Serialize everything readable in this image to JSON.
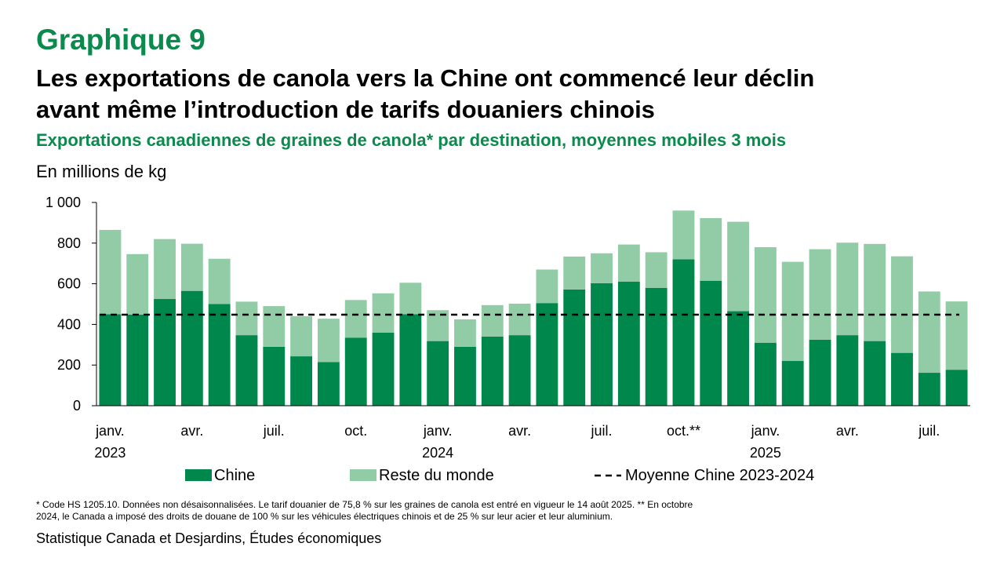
{
  "header": {
    "kicker": "Graphique 9",
    "title_line1": "Les exportations de canola vers la Chine ont commencé leur déclin",
    "title_line2": "avant même l’introduction de tarifs douaniers chinois",
    "subtitle": "Exportations canadiennes de graines de canola* par destination, moyennes mobiles 3 mois",
    "unit": "En millions de kg"
  },
  "footer": {
    "note_line1": "* Code HS 1205.10. Données non désaisonnalisées. Le tarif douanier de 75,8 % sur les graines de canola est entré en vigueur le 14 août 2025.  ** En octobre",
    "note_line2": "2024, le Canada a imposé des droits de douane de 100 % sur les véhicules électriques chinois et de 25 % sur leur acier et leur aluminium.",
    "source": "Statistique Canada et Desjardins, Études économiques"
  },
  "colors": {
    "chine": "#00874c",
    "reste": "#92cca7",
    "moyenne": "#000000",
    "title_green": "#0a8a4d"
  },
  "chart_data": {
    "type": "bar",
    "stacked": true,
    "ylim": [
      0,
      1000
    ],
    "yticks": [
      0,
      200,
      400,
      600,
      800,
      1000
    ],
    "ytick_labels": [
      "0",
      "200",
      "400",
      "600",
      "800",
      "1 000"
    ],
    "categories": [
      "janv. 2023",
      "févr. 2023",
      "mars 2023",
      "avr. 2023",
      "mai 2023",
      "juin 2023",
      "juil. 2023",
      "août 2023",
      "sept. 2023",
      "oct. 2023",
      "nov. 2023",
      "déc. 2023",
      "janv. 2024",
      "févr. 2024",
      "mars 2024",
      "avr. 2024",
      "mai 2024",
      "juin 2024",
      "juil. 2024",
      "août 2024",
      "sept. 2024",
      "oct. 2024",
      "nov. 2024",
      "déc. 2024",
      "janv. 2025",
      "févr. 2025",
      "mars 2025",
      "avr. 2025",
      "mai 2025",
      "juin 2025",
      "juil. 2025",
      "août 2025"
    ],
    "xtick_labels": [
      {
        "index": 0,
        "month": "janv.",
        "year": "2023"
      },
      {
        "index": 3,
        "month": "avr.",
        "year": ""
      },
      {
        "index": 6,
        "month": "juil.",
        "year": ""
      },
      {
        "index": 9,
        "month": "oct.",
        "year": ""
      },
      {
        "index": 12,
        "month": "janv.",
        "year": "2024"
      },
      {
        "index": 15,
        "month": "avr.",
        "year": ""
      },
      {
        "index": 18,
        "month": "juil.",
        "year": ""
      },
      {
        "index": 21,
        "month": "oct.**",
        "year": ""
      },
      {
        "index": 24,
        "month": "janv.",
        "year": "2025"
      },
      {
        "index": 27,
        "month": "avr.",
        "year": ""
      },
      {
        "index": 30,
        "month": "juil.",
        "year": ""
      }
    ],
    "series": [
      {
        "name": "Chine",
        "values": [
          450,
          448,
          525,
          565,
          500,
          347,
          290,
          243,
          215,
          335,
          360,
          450,
          318,
          290,
          340,
          347,
          505,
          572,
          603,
          610,
          580,
          720,
          615,
          465,
          310,
          220,
          325,
          347,
          318,
          260,
          162,
          177
        ]
      },
      {
        "name": "Reste du monde",
        "values": [
          415,
          298,
          295,
          232,
          223,
          165,
          200,
          197,
          213,
          185,
          193,
          155,
          152,
          135,
          155,
          155,
          165,
          162,
          147,
          183,
          175,
          240,
          308,
          440,
          470,
          488,
          445,
          455,
          478,
          475,
          400,
          336
        ]
      }
    ],
    "reference_line": {
      "name": "Moyenne Chine 2023-2024",
      "value": 448
    }
  },
  "legend": {
    "chine": "Chine",
    "reste": "Reste du monde",
    "moyenne": "Moyenne Chine 2023-2024"
  }
}
